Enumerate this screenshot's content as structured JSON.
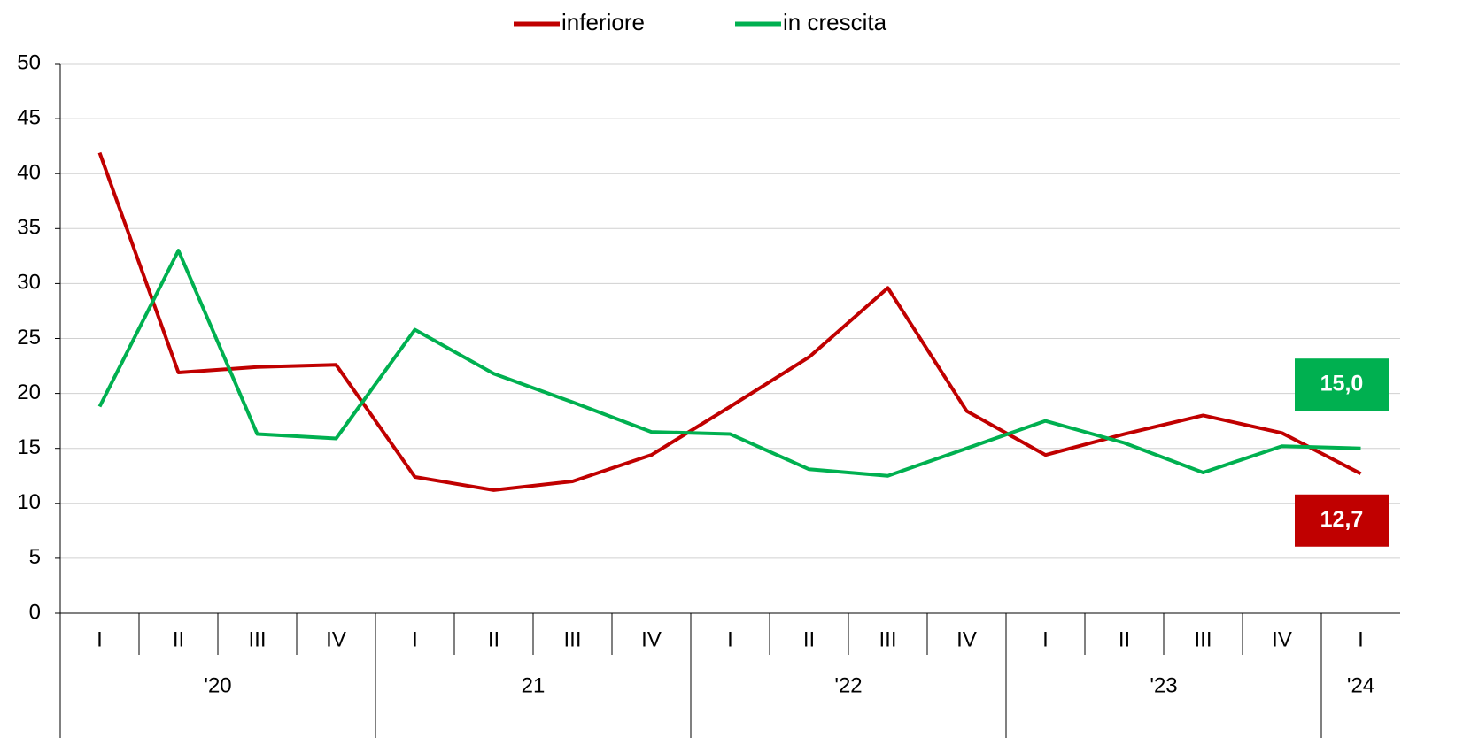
{
  "chart_data": {
    "type": "line",
    "categories": [
      "I",
      "II",
      "III",
      "IV",
      "I",
      "II",
      "III",
      "IV",
      "I",
      "II",
      "III",
      "IV",
      "I",
      "II",
      "III",
      "IV",
      "I"
    ],
    "groups": [
      {
        "label": "'20",
        "span": 4
      },
      {
        "label": "21",
        "span": 4
      },
      {
        "label": "'22",
        "span": 4
      },
      {
        "label": "'23",
        "span": 4
      },
      {
        "label": "'24",
        "span": 1
      }
    ],
    "series": [
      {
        "name": "inferiore",
        "color": "#c00000",
        "values": [
          41.9,
          21.9,
          22.4,
          22.6,
          12.4,
          11.2,
          12.0,
          14.4,
          18.8,
          23.3,
          29.6,
          18.4,
          14.4,
          16.3,
          18.0,
          16.4,
          12.7
        ],
        "value_labels": [
          null,
          null,
          null,
          null,
          null,
          null,
          null,
          null,
          null,
          null,
          null,
          null,
          null,
          null,
          null,
          null,
          "12,7"
        ]
      },
      {
        "name": "in crescita",
        "color": "#00b050",
        "values": [
          18.8,
          33.0,
          16.3,
          15.9,
          25.8,
          21.8,
          19.2,
          16.5,
          16.3,
          13.1,
          12.5,
          15.0,
          17.5,
          15.5,
          12.8,
          15.2,
          15.0
        ],
        "value_labels": [
          null,
          null,
          null,
          null,
          null,
          null,
          null,
          null,
          null,
          null,
          null,
          null,
          null,
          null,
          null,
          null,
          "15,0"
        ]
      }
    ],
    "ylim": [
      0,
      50
    ],
    "yticks": [
      0,
      5,
      10,
      15,
      20,
      25,
      30,
      35,
      40,
      45,
      50
    ],
    "grid": true,
    "legend": "top"
  }
}
